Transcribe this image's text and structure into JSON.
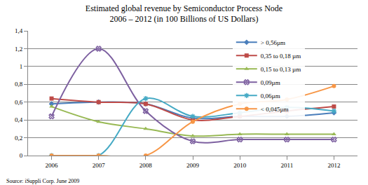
{
  "chart_data": {
    "type": "line",
    "title": "Estimated global revenue by Semiconductor Process Node",
    "subtitle": "2006 – 2012 (in 100 Billions of US Dollars)",
    "source": "Source: iSuppli Corp. June 2009",
    "categories": [
      "2006",
      "2007",
      "2008",
      "2009",
      "2010",
      "2011",
      "2012"
    ],
    "series": [
      {
        "name": "> 0,56µm",
        "color": "#4a7ebb",
        "marker": "diamond",
        "values": [
          0.58,
          0.6,
          0.58,
          0.42,
          0.44,
          0.44,
          0.48
        ]
      },
      {
        "name": "0,35 to 0,18 µm",
        "color": "#be4b48",
        "marker": "square",
        "values": [
          0.64,
          0.6,
          0.58,
          0.4,
          0.44,
          0.5,
          0.55
        ]
      },
      {
        "name": "0,15 to 0,13 µm",
        "color": "#98b954",
        "marker": "triangle-up",
        "values": [
          0.55,
          0.38,
          0.3,
          0.22,
          0.24,
          0.24,
          0.24
        ]
      },
      {
        "name": "0,09µm",
        "color": "#7d60a0",
        "marker": "x",
        "values": [
          0.44,
          1.2,
          0.5,
          0.16,
          0.18,
          0.18,
          0.18
        ]
      },
      {
        "name": "0,06µm",
        "color": "#46aac5",
        "marker": "asterisk",
        "values": [
          0,
          0,
          0.64,
          0.44,
          0.48,
          0.54,
          0.5
        ]
      },
      {
        "name": "< 0,045µm",
        "color": "#f79646",
        "marker": "circle",
        "values": [
          0,
          0,
          0,
          0.38,
          0.58,
          0.63,
          0.78
        ]
      }
    ],
    "ylim": [
      0,
      1.4
    ],
    "yticks": [
      0,
      {
        "value": 0.2,
        "label": "0,2"
      },
      {
        "value": 0.4,
        "label": "0,4"
      },
      {
        "value": 0.6,
        "label": "0,6"
      },
      {
        "value": 0.8,
        "label": "0,8"
      },
      1,
      {
        "value": 1.2,
        "label": "1,2"
      },
      {
        "value": 1.4,
        "label": "1,4"
      }
    ],
    "grid": true,
    "legend": "top-right",
    "line_style": "smooth"
  }
}
